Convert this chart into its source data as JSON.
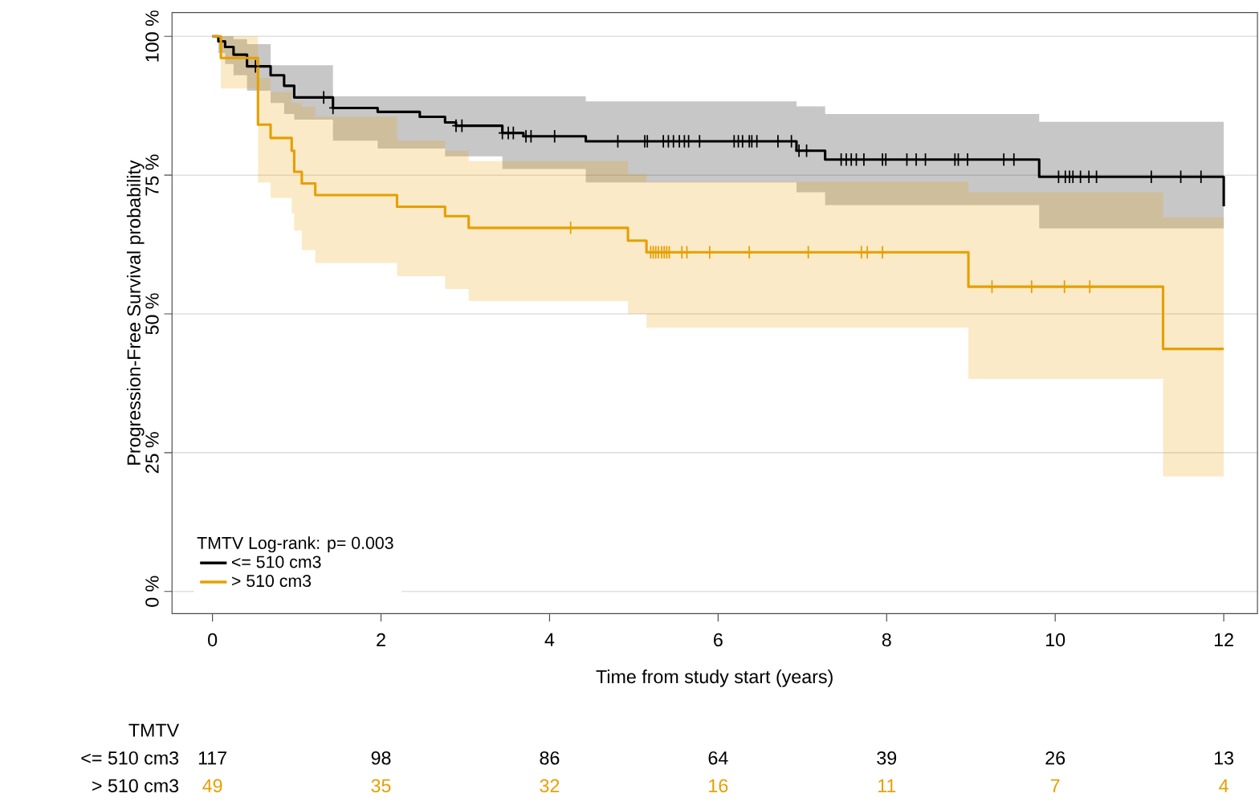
{
  "chart_data": {
    "type": "step",
    "xlabel": "Time from study start (years)",
    "ylabel": "Progression-Free Survival probability",
    "legend_title": "TMTV  Log-rank: p= 0.003",
    "legend": "bottom left",
    "grid": "y",
    "line_style": "solid",
    "xlim": [
      -0.48,
      12.4
    ],
    "ylim": [
      -4,
      104.3
    ],
    "xticks": [
      0,
      2,
      4,
      6,
      8,
      10,
      12
    ],
    "yticks": [
      {
        "value": 0,
        "label": "0 %"
      },
      {
        "value": 25,
        "label": "25 %"
      },
      {
        "value": 50,
        "label": "50 %"
      },
      {
        "value": 75,
        "label": "75 %"
      },
      {
        "value": 100,
        "label": "100 %"
      }
    ],
    "series": [
      {
        "name": "<= 510 cm3",
        "color": "#000000",
        "marker": "none",
        "x": [
          0,
          0.07,
          0.15,
          0.25,
          0.41,
          0.69,
          0.85,
          0.97,
          1.43,
          1.96,
          2.46,
          2.76,
          2.89,
          3.44,
          3.69,
          4.43,
          6.93,
          7.27,
          9.81,
          12.0
        ],
        "values": [
          100,
          99.1,
          98.1,
          96.7,
          94.6,
          93.0,
          91.1,
          89.0,
          87.1,
          86.4,
          85.5,
          84.5,
          83.9,
          82.6,
          82.0,
          81.1,
          79.4,
          77.8,
          74.7,
          69.4
        ],
        "upper": [
          100,
          100,
          100,
          99.5,
          98.6,
          94.8,
          94.8,
          94.8,
          89.2,
          89.2,
          89.2,
          89.2,
          89.2,
          89.2,
          89.2,
          88.3,
          87.4,
          86.0,
          84.6,
          84.6
        ],
        "lower": [
          100,
          97,
          95,
          93,
          90.2,
          88,
          86,
          85,
          81.2,
          79.8,
          79.8,
          78.4,
          78.4,
          76.1,
          76.1,
          73.7,
          71.9,
          69.6,
          65.4,
          55.0
        ]
      },
      {
        "name": "> 510 cm3",
        "color": "#e69f00",
        "marker": "none",
        "x": [
          0,
          0.1,
          0.54,
          0.69,
          0.94,
          0.97,
          1.06,
          1.22,
          2.19,
          2.76,
          3.04,
          4.93,
          5.15,
          8.97,
          11.28,
          12.0
        ],
        "values": [
          100,
          96.1,
          84.1,
          81.7,
          79.4,
          75.6,
          73.5,
          71.4,
          69.3,
          67.6,
          65.5,
          63.2,
          61.1,
          54.9,
          43.7,
          43.7
        ],
        "upper": [
          100,
          100,
          92.5,
          90,
          88,
          88,
          87.3,
          85.5,
          81.2,
          79.4,
          77.5,
          75.2,
          73.8,
          71.9,
          67.4,
          67.4
        ],
        "lower": [
          100,
          90.6,
          73.7,
          70.9,
          68.1,
          65,
          61.5,
          59.2,
          56.8,
          54.5,
          52.3,
          50.0,
          47.5,
          38.3,
          20.7,
          20.7
        ]
      },
      {
        "type": "scatter",
        "color": "#000000",
        "marker": "cross",
        "x": [
          0.51,
          1.32,
          1.43,
          2.89,
          2.96,
          3.44,
          3.51,
          3.57,
          3.72,
          3.78,
          4.06,
          4.81,
          5.13,
          5.16,
          5.35,
          5.41,
          5.47,
          5.54,
          5.6,
          5.65,
          5.78,
          6.19,
          6.24,
          6.29,
          6.37,
          6.4,
          6.46,
          6.71,
          6.87,
          6.96,
          7.05,
          7.46,
          7.52,
          7.58,
          7.64,
          7.73,
          7.95,
          7.99,
          8.24,
          8.35,
          8.46,
          8.81,
          8.85,
          8.96,
          9.39,
          9.51,
          10.04,
          10.12,
          10.17,
          10.21,
          10.3,
          10.4,
          10.49,
          11.14,
          11.49,
          11.73
        ],
        "values": [
          94.6,
          89.0,
          87.1,
          83.9,
          83.9,
          82.6,
          82.6,
          82.6,
          82.0,
          82.0,
          82.0,
          81.1,
          81.1,
          81.1,
          81.1,
          81.1,
          81.1,
          81.1,
          81.1,
          81.1,
          81.1,
          81.1,
          81.1,
          81.1,
          81.1,
          81.1,
          81.1,
          81.1,
          81.1,
          79.4,
          79.4,
          77.8,
          77.8,
          77.8,
          77.8,
          77.8,
          77.8,
          77.8,
          77.8,
          77.8,
          77.8,
          77.8,
          77.8,
          77.8,
          77.8,
          77.8,
          74.7,
          74.7,
          74.7,
          74.7,
          74.7,
          74.7,
          74.7,
          74.7,
          74.7,
          74.7
        ]
      },
      {
        "type": "scatter",
        "color": "#e69f00",
        "marker": "cross",
        "x": [
          4.25,
          5.2,
          5.23,
          5.26,
          5.29,
          5.33,
          5.36,
          5.39,
          5.42,
          5.57,
          5.63,
          5.9,
          6.37,
          7.07,
          7.7,
          7.77,
          7.95,
          9.25,
          9.72,
          10.11,
          10.41
        ],
        "values": [
          65.5,
          61.1,
          61.1,
          61.1,
          61.1,
          61.1,
          61.1,
          61.1,
          61.1,
          61.1,
          61.1,
          61.1,
          61.1,
          61.1,
          61.1,
          61.1,
          61.1,
          54.9,
          54.9,
          54.9,
          54.9
        ]
      }
    ],
    "annotations": [
      "TMTV",
      "<= 510 cm3",
      "117",
      "98",
      "86",
      "64",
      "39",
      "26",
      "13",
      "> 510 cm3",
      "49",
      "35",
      "32",
      "16",
      "11",
      "7",
      "4"
    ]
  }
}
